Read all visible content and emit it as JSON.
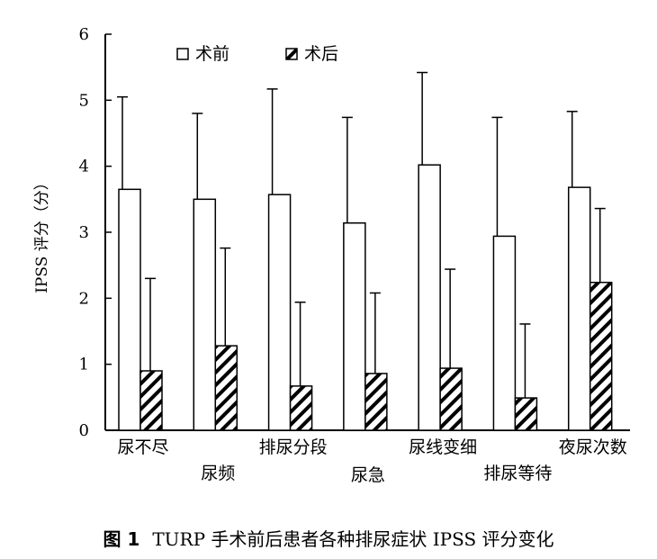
{
  "chart_data": {
    "type": "bar",
    "categories": [
      "尿不尽",
      "尿频",
      "排尿分段",
      "尿急",
      "尿线变细",
      "排尿等待",
      "夜尿次数"
    ],
    "series": [
      {
        "name": "术前",
        "values": [
          3.65,
          3.5,
          3.57,
          3.14,
          4.02,
          2.94,
          3.68
        ],
        "error": [
          1.4,
          1.3,
          1.6,
          1.6,
          1.4,
          1.8,
          1.15
        ],
        "pattern": "hollow"
      },
      {
        "name": "术后",
        "values": [
          0.9,
          1.28,
          0.67,
          0.86,
          0.94,
          0.49,
          2.24
        ],
        "error": [
          1.4,
          1.48,
          1.27,
          1.22,
          1.5,
          1.12,
          1.12
        ],
        "pattern": "hatched"
      }
    ],
    "ylabel": "IPSS 评分（分）",
    "ylim": [
      0,
      6
    ],
    "yticks": [
      "0",
      "1",
      "2",
      "3",
      "4",
      "5",
      "6"
    ],
    "legend": "top",
    "grid": false
  },
  "caption": {
    "figure_no": "图 1",
    "text": "TURP 手术前后患者各种排尿症状 IPSS 评分变化"
  },
  "colors": {
    "ink": "#000000",
    "background": "#ffffff"
  }
}
